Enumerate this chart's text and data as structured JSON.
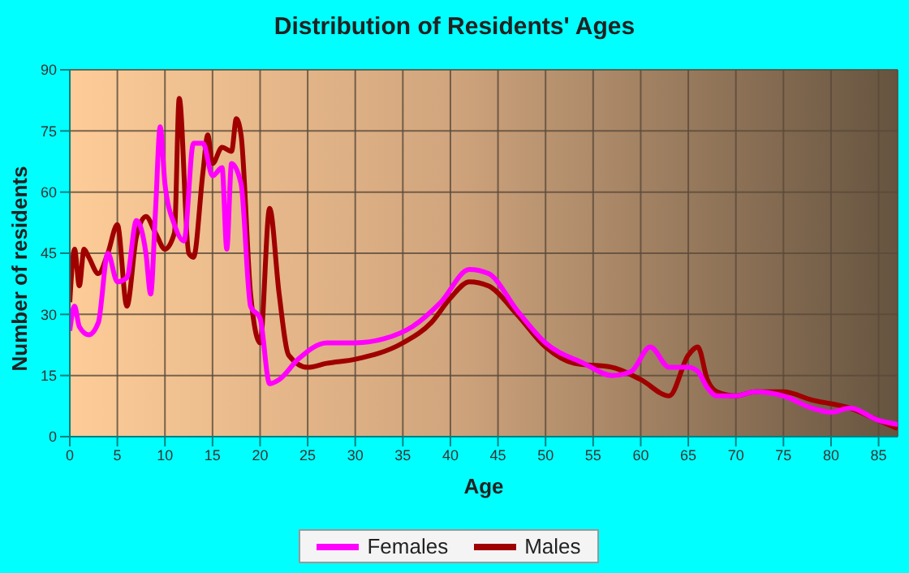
{
  "chart_data": {
    "type": "line",
    "title": "Distribution of Residents' Ages",
    "xlabel": "Age",
    "ylabel": "Number of residents",
    "xlim": [
      0,
      87
    ],
    "xticks": [
      0,
      5,
      10,
      15,
      20,
      25,
      30,
      35,
      40,
      45,
      50,
      55,
      60,
      65,
      70,
      75,
      80,
      85
    ],
    "ylim": [
      0,
      90
    ],
    "yticks": [
      0,
      15,
      30,
      45,
      60,
      75,
      90
    ],
    "grid": true,
    "legend": "bottom",
    "marker": "none",
    "line_style": "solid",
    "series": [
      {
        "name": "Males",
        "color": "#a00000",
        "x": [
          0,
          0.5,
          1,
          1.5,
          2,
          3,
          4,
          5,
          6,
          7,
          8,
          9,
          10,
          11,
          11.5,
          12.5,
          13,
          14,
          14.5,
          15,
          16,
          17,
          17.5,
          18,
          19,
          20,
          21,
          22,
          23,
          25,
          27,
          30,
          35,
          38,
          40,
          42,
          44,
          47,
          50,
          53,
          57,
          60,
          63,
          65,
          66,
          67,
          68,
          70,
          72,
          75,
          78,
          82,
          85,
          87
        ],
        "values": [
          33,
          46,
          37,
          46,
          44,
          40,
          45,
          52,
          32,
          49,
          54,
          50,
          46,
          50,
          83,
          45,
          44,
          65,
          74,
          67,
          71,
          70,
          78,
          74,
          35,
          23,
          56,
          35,
          20,
          17,
          18,
          19,
          23,
          28,
          34,
          38,
          37,
          30,
          22,
          18,
          17,
          14,
          10,
          20,
          22,
          14,
          11,
          10,
          11,
          11,
          9,
          7,
          4,
          2
        ]
      },
      {
        "name": "Females",
        "color": "#ff00ff",
        "x": [
          0,
          0.5,
          1,
          2,
          3,
          4,
          5,
          6,
          7,
          8,
          8.5,
          9,
          9.5,
          10,
          11,
          12,
          13,
          14,
          15,
          16,
          16.5,
          17,
          18,
          19,
          20,
          21,
          22,
          24,
          27,
          30,
          33,
          36,
          39,
          42,
          44,
          47,
          50,
          54,
          57,
          59,
          61,
          63,
          65,
          66,
          67,
          68,
          70,
          72,
          75,
          78,
          80,
          82,
          85,
          87
        ],
        "values": [
          26,
          32,
          27,
          25,
          28,
          45,
          38,
          39,
          53,
          45,
          35,
          55,
          76,
          62,
          52,
          48,
          72,
          72,
          64,
          66,
          46,
          67,
          62,
          32,
          29,
          13,
          14,
          19,
          23,
          23,
          24,
          27,
          33,
          41,
          40,
          31,
          23,
          18,
          15,
          16,
          22,
          17,
          17,
          16,
          12,
          10,
          10,
          11,
          10,
          7,
          6,
          7,
          4,
          3
        ]
      }
    ]
  }
}
